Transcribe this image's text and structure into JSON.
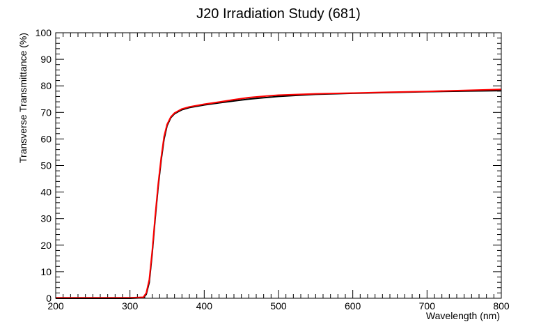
{
  "chart_data": {
    "type": "line",
    "title": "J20 Irradiation Study (681)",
    "xlabel": "Wavelength (nm)",
    "ylabel": "Transverse Transmittance (%)",
    "xlim": [
      200,
      800
    ],
    "ylim": [
      0,
      100
    ],
    "x_ticks": [
      200,
      300,
      400,
      500,
      600,
      700,
      800
    ],
    "y_ticks": [
      0,
      10,
      20,
      30,
      40,
      50,
      60,
      70,
      80,
      90,
      100
    ],
    "grid": false,
    "legend": "none",
    "series": [
      {
        "color": "#000000",
        "x": [
          200,
          300,
          318,
          322,
          326,
          330,
          334,
          338,
          342,
          346,
          350,
          355,
          360,
          370,
          380,
          400,
          420,
          440,
          460,
          480,
          500,
          550,
          600,
          650,
          700,
          750,
          800
        ],
        "y": [
          0,
          0,
          0.2,
          1.5,
          6,
          17,
          30,
          42,
          52,
          60,
          65,
          68,
          69.5,
          71,
          71.8,
          72.8,
          73.6,
          74.3,
          75,
          75.5,
          76,
          76.8,
          77.2,
          77.5,
          77.8,
          78,
          78.2
        ]
      },
      {
        "color": "#ff0000",
        "x": [
          200,
          300,
          318,
          322,
          326,
          330,
          334,
          338,
          342,
          346,
          350,
          355,
          360,
          370,
          380,
          400,
          420,
          440,
          460,
          480,
          500,
          550,
          600,
          650,
          700,
          750,
          800
        ],
        "y": [
          0.2,
          0.2,
          0.4,
          2,
          7,
          18,
          31,
          43,
          53,
          61,
          65.5,
          68.3,
          69.8,
          71.3,
          72.1,
          73.1,
          73.9,
          74.8,
          75.6,
          76.1,
          76.5,
          77,
          77.3,
          77.6,
          77.9,
          78.3,
          78.7
        ]
      }
    ]
  }
}
